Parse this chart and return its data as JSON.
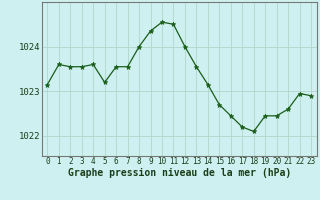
{
  "x": [
    0,
    1,
    2,
    3,
    4,
    5,
    6,
    7,
    8,
    9,
    10,
    11,
    12,
    13,
    14,
    15,
    16,
    17,
    18,
    19,
    20,
    21,
    22,
    23
  ],
  "y": [
    1023.15,
    1023.6,
    1023.55,
    1023.55,
    1023.6,
    1023.2,
    1023.55,
    1023.55,
    1024.0,
    1024.35,
    1024.55,
    1024.5,
    1024.0,
    1023.55,
    1023.15,
    1022.7,
    1022.45,
    1022.2,
    1022.1,
    1022.45,
    1022.45,
    1022.6,
    1022.95,
    1022.9
  ],
  "line_color": "#1a5e1a",
  "marker": "*",
  "marker_size": 3.5,
  "marker_color": "#1a5e1a",
  "bg_color": "#cff0f0",
  "grid_color": "#b0d8cc",
  "xlabel": "Graphe pression niveau de la mer (hPa)",
  "xlabel_color": "#1a3e1a",
  "tick_color": "#1a3e1a",
  "yticks": [
    1022,
    1023,
    1024
  ],
  "ylim": [
    1021.55,
    1025.0
  ],
  "xlim": [
    -0.5,
    23.5
  ],
  "xtick_labels": [
    "0",
    "1",
    "2",
    "3",
    "4",
    "5",
    "6",
    "7",
    "8",
    "9",
    "10",
    "11",
    "12",
    "13",
    "14",
    "15",
    "16",
    "17",
    "18",
    "19",
    "20",
    "21",
    "22",
    "23"
  ],
  "spine_color": "#777777",
  "ytick_fontsize": 6.5,
  "xtick_fontsize": 5.5,
  "xlabel_fontsize": 7.0
}
